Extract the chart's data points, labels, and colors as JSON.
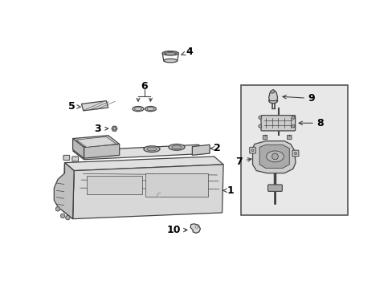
{
  "bg_color": "#ffffff",
  "line_color": "#444444",
  "light_gray": "#cccccc",
  "mid_gray": "#aaaaaa",
  "dark_gray": "#888888",
  "box_fill": "#e8e8e8",
  "box_edge": "#666666",
  "figsize": [
    4.89,
    3.6
  ],
  "dpi": 100,
  "xlim": [
    0,
    489
  ],
  "ylim": [
    360,
    0
  ],
  "label_fontsize": 9,
  "arrow_lw": 0.8,
  "part_lw": 0.9
}
